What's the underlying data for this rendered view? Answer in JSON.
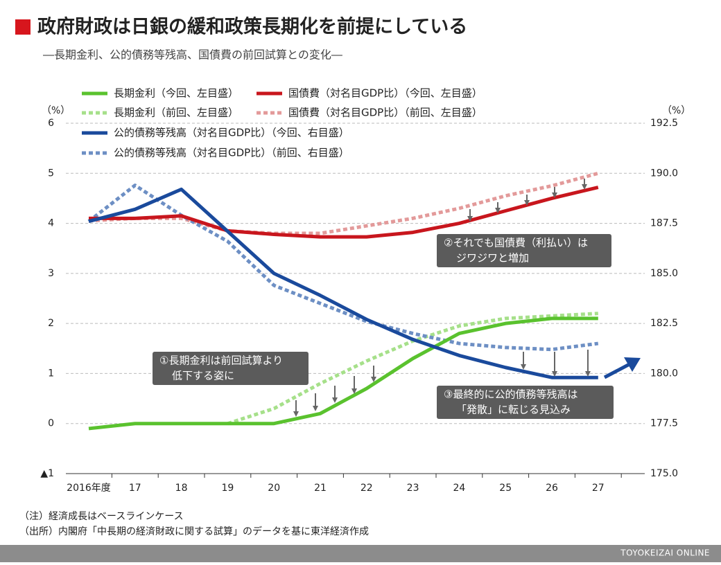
{
  "chart_data": {
    "type": "line",
    "title": "政府財政は日銀の緩和政策長期化を前提にしている",
    "subtitle": "―長期金利、公的債務等残高、国債費の前回試算との変化―",
    "y_axis_label": "（%）",
    "y2_axis_label": "（%）",
    "categories": [
      "2016年度",
      "17",
      "18",
      "19",
      "20",
      "21",
      "22",
      "23",
      "24",
      "25",
      "26",
      "27"
    ],
    "ylim": [
      -1,
      6
    ],
    "yticks": [
      {
        "value": -1,
        "label": "▲1"
      },
      0,
      1,
      2,
      3,
      4,
      5,
      6
    ],
    "y2lim": [
      175,
      192.5
    ],
    "y2ticks": [
      {
        "value": 175,
        "label": "175.0"
      },
      {
        "value": 177.5,
        "label": "177.5"
      },
      {
        "value": 180,
        "label": "180.0"
      },
      {
        "value": 182.5,
        "label": "182.5"
      },
      {
        "value": 185,
        "label": "185.0"
      },
      {
        "value": 187.5,
        "label": "187.5"
      },
      {
        "value": 190,
        "label": "190.0"
      },
      {
        "value": 192.5,
        "label": "192.5"
      }
    ],
    "grid": true,
    "series": [
      {
        "name": "長期金利（今回、左目盛）",
        "color": "#5ac22e",
        "dashed": false,
        "values": [
          -0.1,
          0,
          0,
          0,
          0,
          0.2,
          0.7,
          1.3,
          1.8,
          2.0,
          2.1,
          2.1
        ]
      },
      {
        "name": "国債費（対名目GDP比）（今回、左目盛）",
        "color": "#c8161d",
        "dashed": false,
        "values": [
          4.1,
          4.1,
          4.15,
          3.85,
          3.78,
          3.73,
          3.73,
          3.82,
          4.0,
          4.25,
          4.5,
          4.72
        ]
      },
      {
        "name": "長期金利（前回、左目盛）",
        "color": "#a6e08a",
        "dashed": true,
        "values": [
          null,
          null,
          null,
          0,
          0.3,
          0.8,
          1.25,
          1.65,
          1.95,
          2.1,
          2.15,
          2.2
        ]
      },
      {
        "name": "国債費（対名目GDP比）（前回、左目盛）",
        "color": "#e39a9a",
        "dashed": true,
        "values": [
          4.05,
          4.1,
          4.1,
          3.85,
          3.8,
          3.8,
          3.95,
          4.1,
          4.3,
          4.55,
          4.75,
          5.0
        ]
      },
      {
        "name": "公的債務等残高（対名目GDP比）（今回、右目盛）",
        "color": "#1a4a9c",
        "dashed": false,
        "axis": "y2",
        "values": [
          187.6,
          188.2,
          189.2,
          187.1,
          185.0,
          183.9,
          182.7,
          181.7,
          180.9,
          180.3,
          179.8,
          179.8
        ]
      },
      {
        "name": "公的債務等残高（対名目GDP比）（前回、右目盛）",
        "color": "#6d8fc4",
        "dashed": true,
        "axis": "y2",
        "values": [
          187.6,
          189.4,
          187.9,
          186.6,
          184.4,
          183.5,
          182.6,
          182.0,
          181.5,
          181.3,
          181.2,
          181.5
        ]
      }
    ],
    "annotations": [
      {
        "lines": [
          "①長期金利は前回試算より",
          "低下する姿に"
        ]
      },
      {
        "lines": [
          "②それでも国債費（利払い）は",
          "ジワジワと増加"
        ]
      },
      {
        "lines": [
          "③最終的に公的債務等残高は",
          "「発散」に転じる見込み"
        ]
      }
    ],
    "notes": [
      "（注）経済成長はベースラインケース",
      "（出所）内閣府「中長期の経済財政に関する試算」のデータを基に東洋経済作成"
    ],
    "footer": "TOYOKEIZAI ONLINE"
  }
}
